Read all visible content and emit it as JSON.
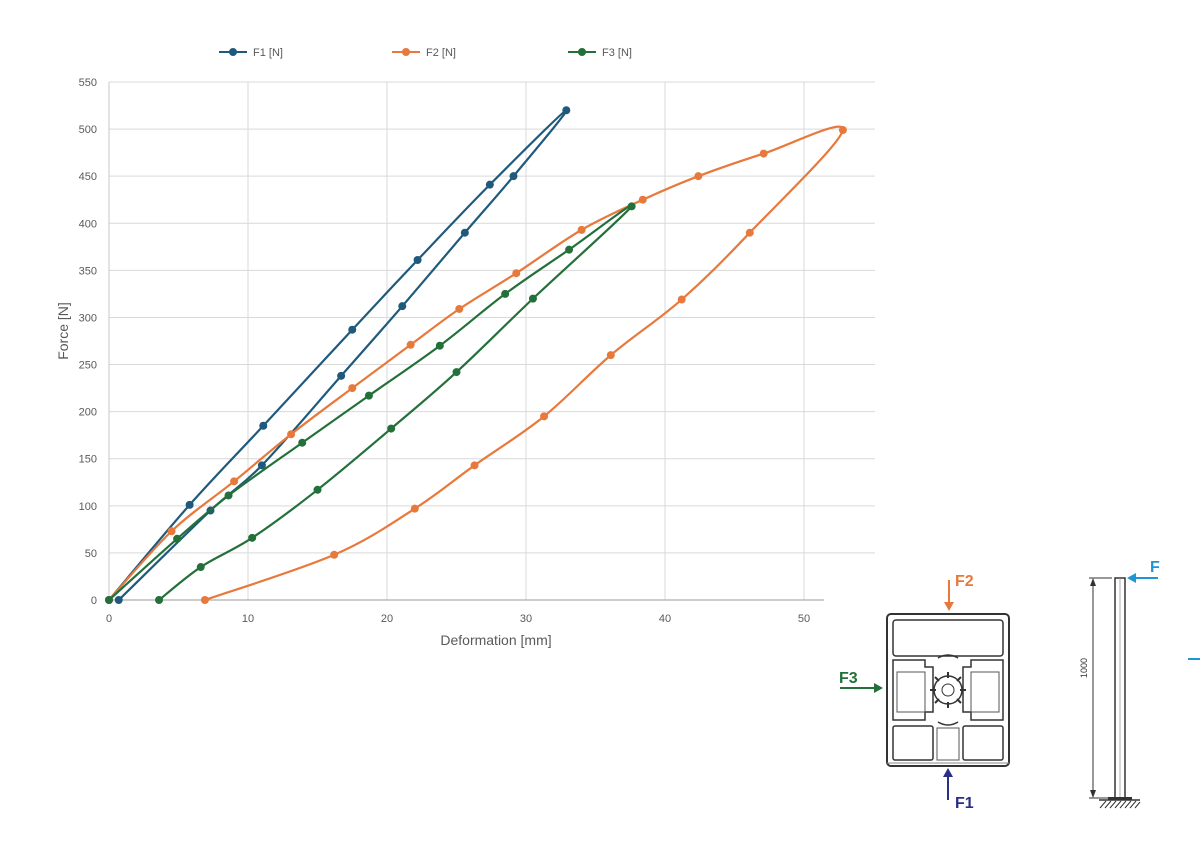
{
  "chart_data": {
    "type": "line",
    "xlabel": "Deformation [mm]",
    "ylabel": "Force  [N]",
    "xlim": [
      0,
      55
    ],
    "ylim": [
      0,
      550
    ],
    "x_ticks": [
      0,
      10,
      20,
      30,
      40,
      50
    ],
    "y_ticks": [
      0,
      50,
      100,
      150,
      200,
      250,
      300,
      350,
      400,
      450,
      500,
      550
    ],
    "grid": true,
    "legend_position": "top",
    "series": [
      {
        "name": "F1 [N]",
        "color": "#1f5a7d",
        "x": [
          0,
          5.8,
          11.1,
          17.5,
          22.2,
          27.4,
          32.9,
          29.1,
          25.6,
          21.1,
          16.7,
          11.0,
          7.3,
          0.7
        ],
        "y": [
          0,
          101,
          185,
          287,
          361,
          441,
          520,
          450,
          390,
          312,
          238,
          143,
          95,
          0
        ]
      },
      {
        "name": "F2 [N]",
        "color": "#e8793c",
        "x": [
          0,
          4.5,
          9.0,
          13.1,
          17.5,
          21.7,
          25.2,
          29.3,
          34.0,
          38.4,
          42.4,
          47.1,
          52.8,
          46.1,
          41.2,
          36.1,
          31.3,
          26.3,
          22.0,
          16.2,
          6.9
        ],
        "y": [
          0,
          73,
          126,
          176,
          225,
          271,
          309,
          347,
          393,
          425,
          450,
          474,
          499,
          390,
          319,
          260,
          195,
          143,
          97,
          48,
          0
        ]
      },
      {
        "name": "F3 [N]",
        "color": "#23703a",
        "x": [
          0,
          4.9,
          8.6,
          13.9,
          18.7,
          23.8,
          28.5,
          33.1,
          37.6,
          30.5,
          25.0,
          20.3,
          15.0,
          10.3,
          6.6,
          3.6
        ],
        "y": [
          0,
          65,
          111,
          167,
          217,
          270,
          325,
          372,
          418,
          320,
          242,
          182,
          117,
          66,
          35,
          0
        ]
      }
    ]
  },
  "diagram": {
    "f1_label": "F1",
    "f2_label": "F2",
    "f3_label": "F3",
    "f_label": "F",
    "length_label": "1000",
    "colors": {
      "f1": "#2a2f86",
      "f2": "#e8793c",
      "f3": "#23703a",
      "f": "#1e96d6"
    }
  }
}
